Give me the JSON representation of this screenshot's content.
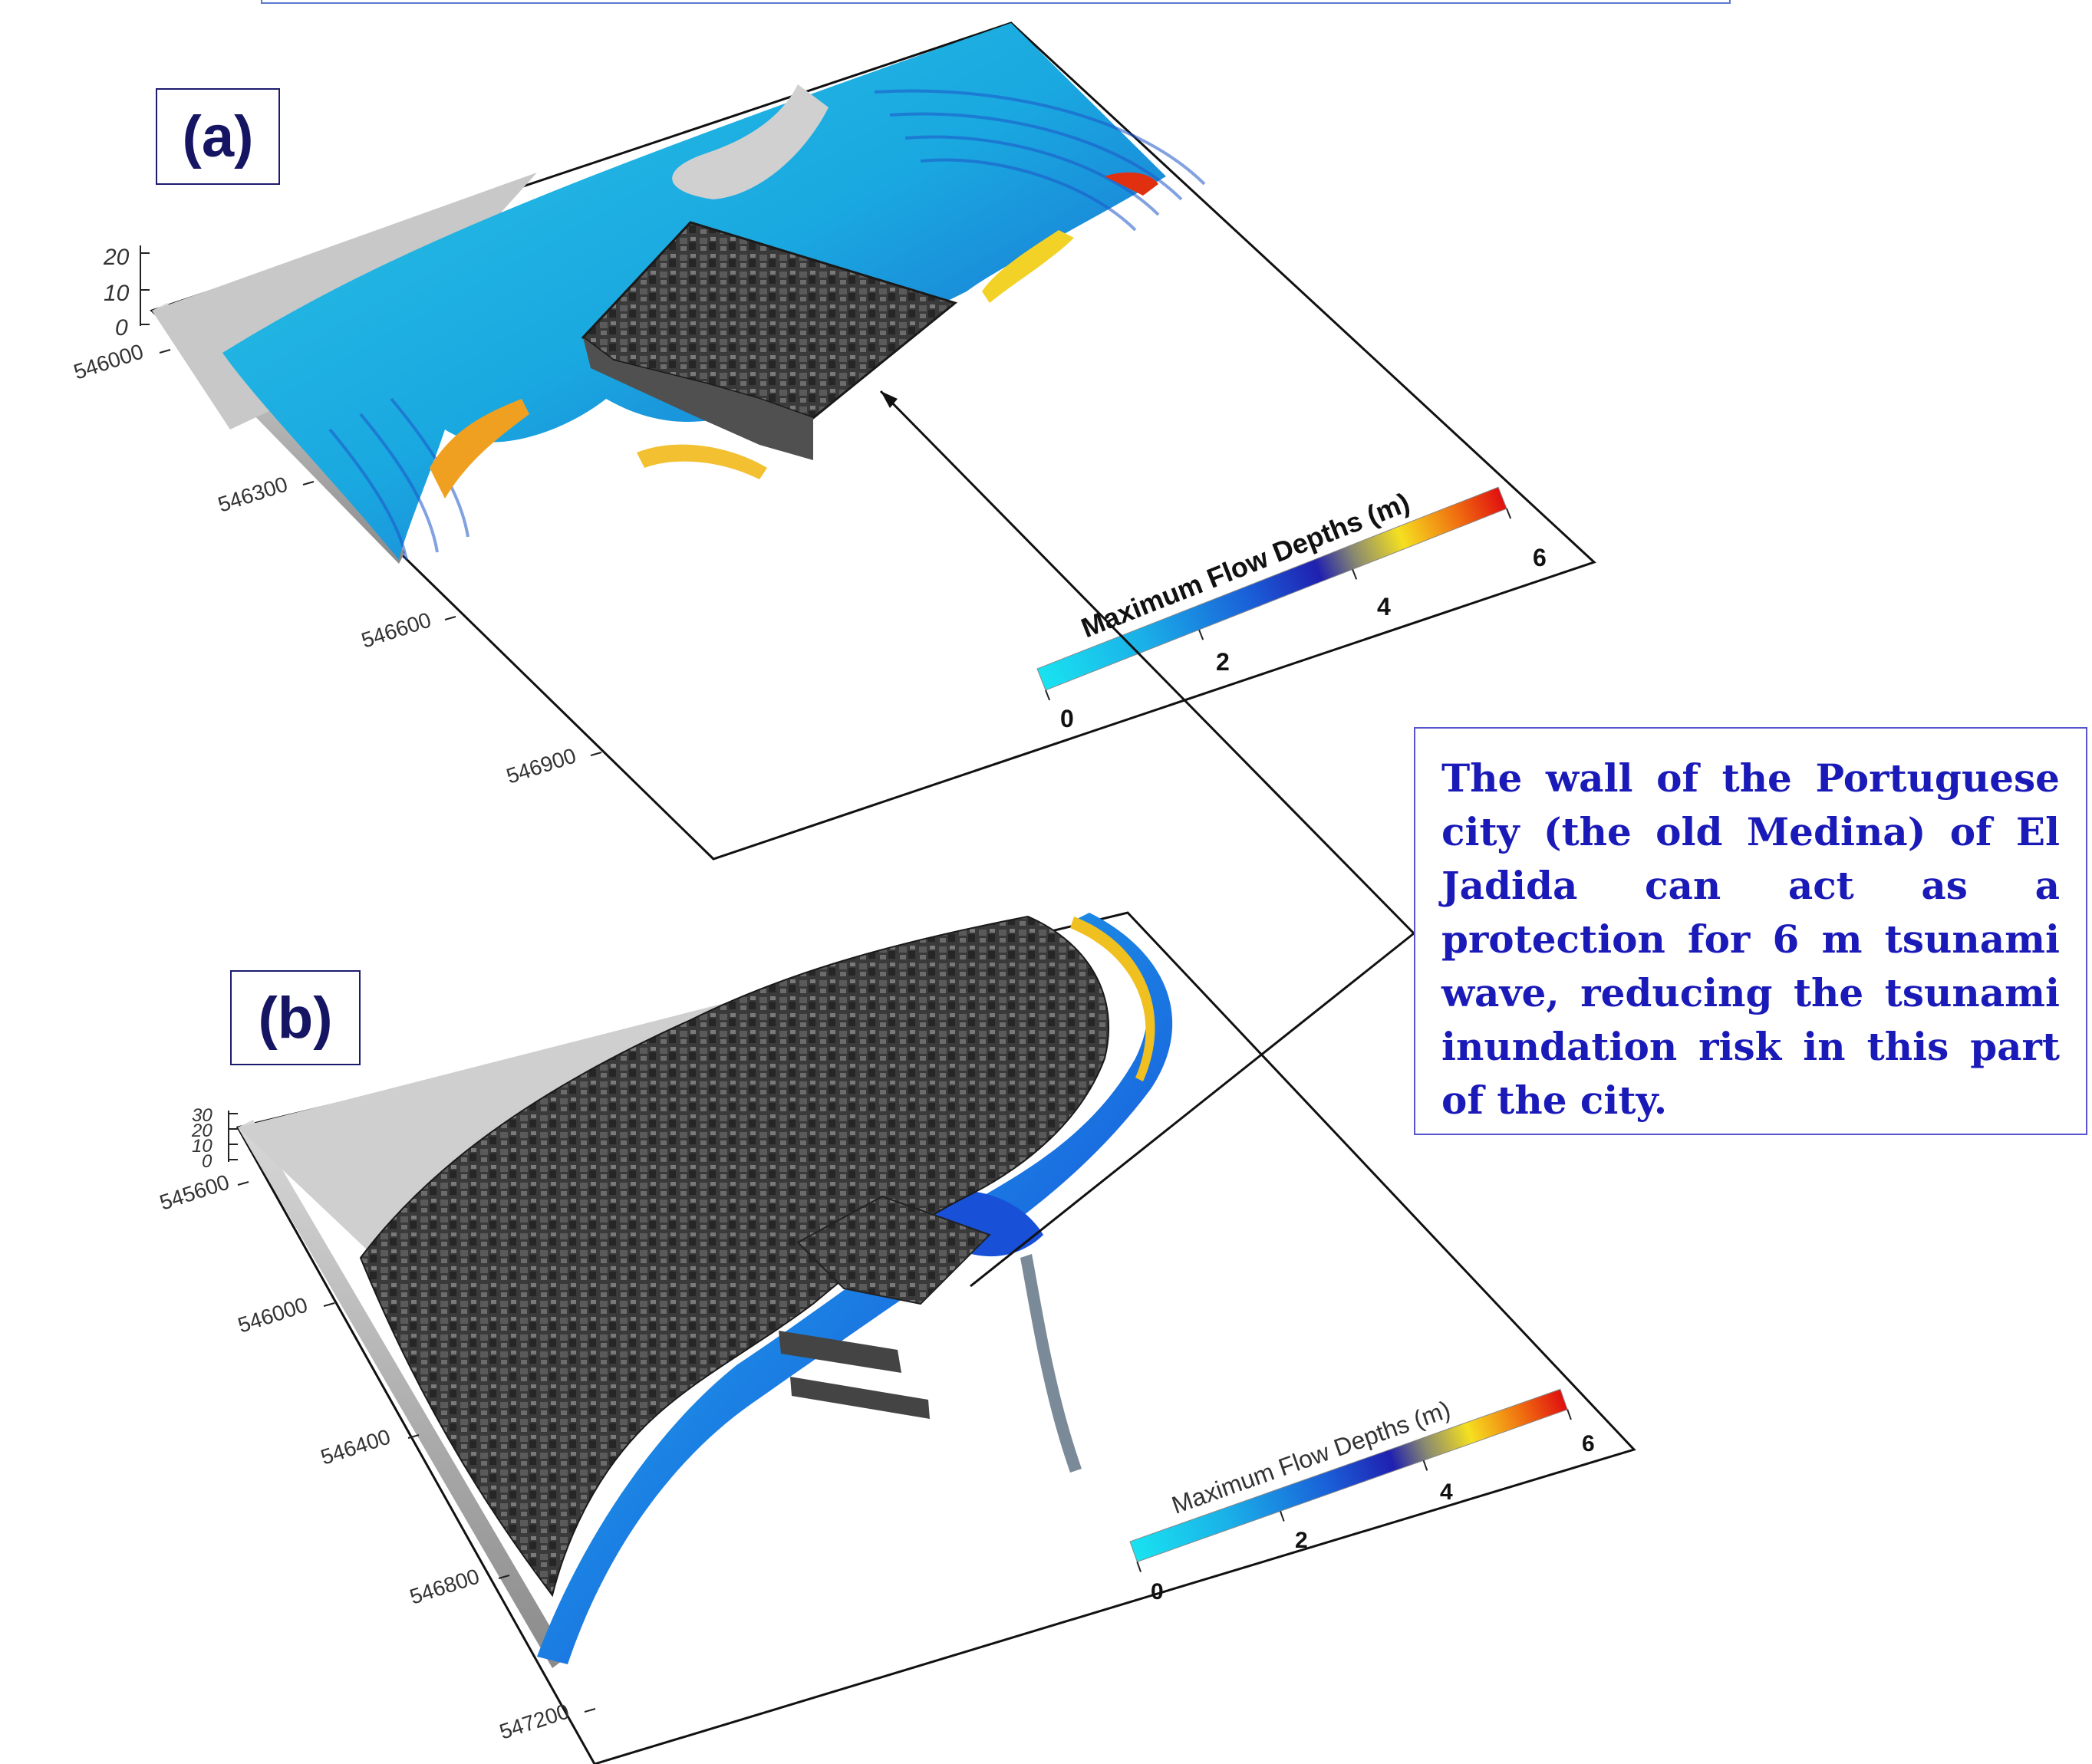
{
  "panels": {
    "a": {
      "label": "(a)",
      "z_ticks": [
        "20",
        "10",
        "0"
      ],
      "y_ticks": [
        "546000",
        "546300",
        "546600",
        "546900"
      ],
      "colorbar": {
        "title": "Maximum Flow Depths (m)",
        "ticks": [
          "0",
          "2",
          "4",
          "6"
        ]
      }
    },
    "b": {
      "label": "(b)",
      "z_ticks": [
        "30",
        "20",
        "10",
        "0"
      ],
      "y_ticks": [
        "545600",
        "546000",
        "546400",
        "546800",
        "547200"
      ],
      "colorbar": {
        "title": "Maximum Flow Depths (m)",
        "ticks": [
          "0",
          "2",
          "4",
          "6"
        ]
      }
    }
  },
  "callout": {
    "text": "The wall of the Portuguese city (the old Medina) of El Jadida can act as a protection for 6 m tsunami wave, reducing the tsunami inundation risk in this part of the city."
  },
  "colors": {
    "depth_scale": [
      "#19e3f0",
      "#1ab8e8",
      "#1a7ae0",
      "#1f2fc8",
      "#2a2a8a",
      "#c8c040",
      "#f5e020",
      "#f08010",
      "#e01010"
    ],
    "callout_text": "#1a1ab8",
    "label_text": "#151563"
  }
}
